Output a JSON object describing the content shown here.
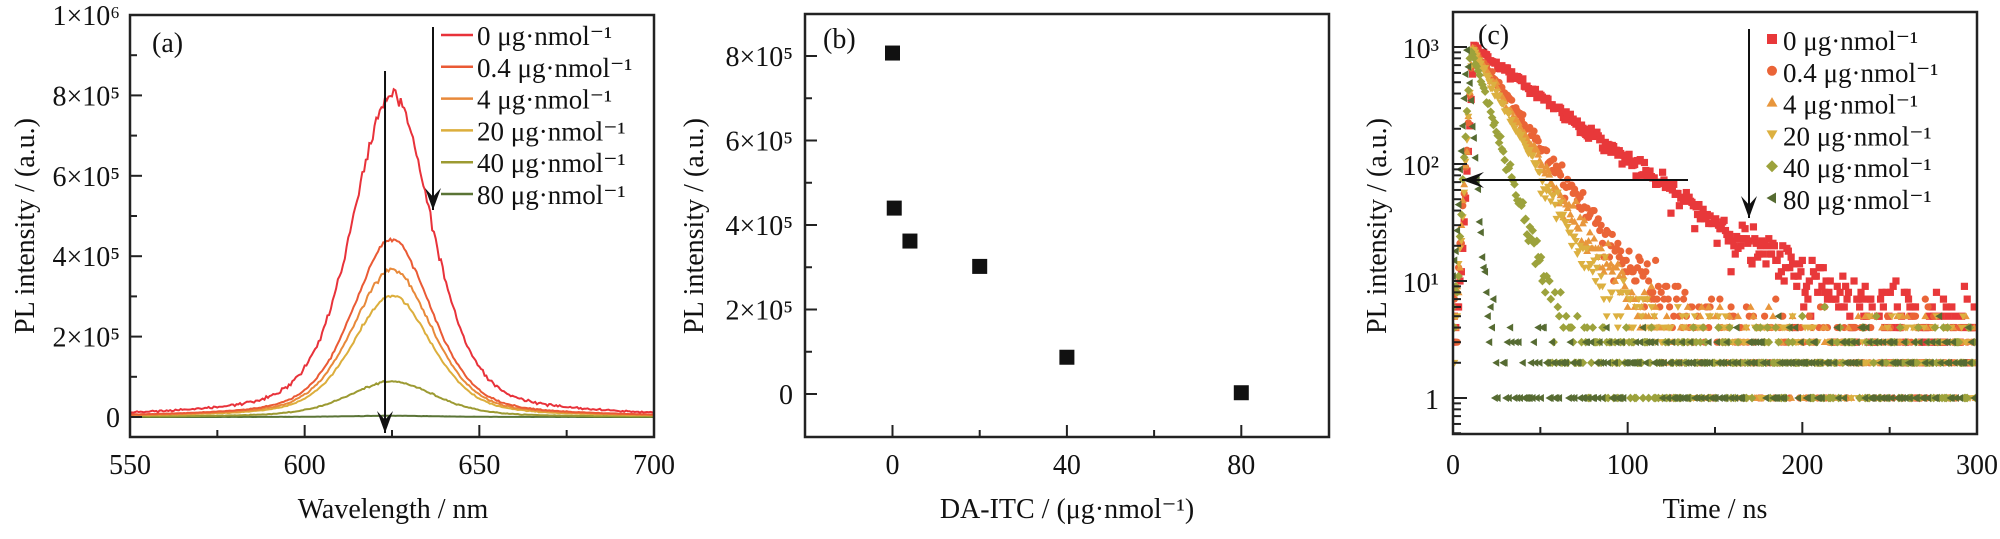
{
  "chart_data": [
    {
      "panel": "(a)",
      "type": "line",
      "xlabel": "Wavelength / nm",
      "ylabel": "PL intensity / (a.u.)",
      "xlim": [
        550,
        700
      ],
      "ylim": [
        -50000,
        1000000
      ],
      "xticks": [
        {
          "v": 550,
          "label": "550"
        },
        {
          "v": 600,
          "label": "600"
        },
        {
          "v": 650,
          "label": "650"
        },
        {
          "v": 700,
          "label": "700"
        }
      ],
      "yticks": [
        {
          "v": 0,
          "label": "0"
        },
        {
          "v": 200000,
          "label": "2×10⁵"
        },
        {
          "v": 400000,
          "label": "4×10⁵"
        },
        {
          "v": 600000,
          "label": "6×10⁵"
        },
        {
          "v": 800000,
          "label": "8×10⁵"
        },
        {
          "v": 1000000,
          "label": "1×10⁶"
        }
      ],
      "series": [
        {
          "name": "0 μg·nmol⁻¹",
          "color": "#e8323a",
          "peak_wavelength": 625,
          "peak_intensity": 805000,
          "fwhm": 27
        },
        {
          "name": "0.4 μg·nmol⁻¹",
          "color": "#ea5a35",
          "peak_wavelength": 625,
          "peak_intensity": 442000,
          "fwhm": 27
        },
        {
          "name": "4 μg·nmol⁻¹",
          "color": "#e8893a",
          "peak_wavelength": 625,
          "peak_intensity": 368000,
          "fwhm": 27
        },
        {
          "name": "20 μg·nmol⁻¹",
          "color": "#dcae3c",
          "peak_wavelength": 625,
          "peak_intensity": 302000,
          "fwhm": 27
        },
        {
          "name": "40 μg·nmol⁻¹",
          "color": "#9c9a32",
          "peak_wavelength": 625,
          "peak_intensity": 88000,
          "fwhm": 30
        },
        {
          "name": "80 μg·nmol⁻¹",
          "color": "#5a7436",
          "peak_wavelength": 625,
          "peak_intensity": 3000,
          "fwhm": 30
        }
      ]
    },
    {
      "panel": "(b)",
      "type": "scatter",
      "xlabel": "DA-ITC / (μg·nmol⁻¹)",
      "ylabel": "PL intensity / (a.u.)",
      "xlim": [
        -20,
        100
      ],
      "ylim": [
        -100000,
        900000
      ],
      "xticks": [
        {
          "v": 0,
          "label": "0"
        },
        {
          "v": 40,
          "label": "40"
        },
        {
          "v": 80,
          "label": "80"
        }
      ],
      "yticks": [
        {
          "v": 0,
          "label": "0"
        },
        {
          "v": 200000,
          "label": "2×10⁵"
        },
        {
          "v": 400000,
          "label": "4×10⁵"
        },
        {
          "v": 600000,
          "label": "6×10⁵"
        },
        {
          "v": 800000,
          "label": "8×10⁵"
        }
      ],
      "color": "#111111",
      "x": [
        0,
        0.4,
        4,
        20,
        40,
        80
      ],
      "y": [
        807000,
        440000,
        362000,
        302000,
        87000,
        3000
      ]
    },
    {
      "panel": "(c)",
      "type": "scatter",
      "yscale": "log",
      "xlabel": "Time / ns",
      "ylabel": "PL intensity / (a.u.)",
      "xlim": [
        0,
        300
      ],
      "ylim": [
        0.5,
        2000
      ],
      "xticks": [
        {
          "v": 0,
          "label": "0"
        },
        {
          "v": 100,
          "label": "100"
        },
        {
          "v": 200,
          "label": "200"
        },
        {
          "v": 300,
          "label": "300"
        }
      ],
      "yticks": [
        {
          "v": 1,
          "label": "1"
        },
        {
          "v": 10,
          "label": "10¹"
        },
        {
          "v": 100,
          "label": "10²"
        },
        {
          "v": 1000,
          "label": "10³"
        }
      ],
      "series": [
        {
          "name": "0 μg·nmol⁻¹",
          "color": "#e8383a",
          "marker": "square",
          "peak_counts": 1000,
          "peak_time_ns": 12,
          "decay_tau_ns": 39,
          "background": 3.2
        },
        {
          "name": "0.4 μg·nmol⁻¹",
          "color": "#ea6437",
          "marker": "circle",
          "peak_counts": 1000,
          "peak_time_ns": 11,
          "decay_tau_ns": 20,
          "background": 2.6
        },
        {
          "name": "4 μg·nmol⁻¹",
          "color": "#e8963c",
          "marker": "triangle-up",
          "peak_counts": 1000,
          "peak_time_ns": 11,
          "decay_tau_ns": 17,
          "background": 2.4
        },
        {
          "name": "20 μg·nmol⁻¹",
          "color": "#dcb040",
          "marker": "triangle-down",
          "peak_counts": 1000,
          "peak_time_ns": 11,
          "decay_tau_ns": 15,
          "background": 2.2
        },
        {
          "name": "40 μg·nmol⁻¹",
          "color": "#9ca23c",
          "marker": "diamond",
          "peak_counts": 1000,
          "peak_time_ns": 10,
          "decay_tau_ns": 9,
          "background": 2.0
        },
        {
          "name": "80 μg·nmol⁻¹",
          "color": "#566b32",
          "marker": "triangle-left",
          "peak_counts": 1000,
          "peak_time_ns": 8,
          "decay_tau_ns": 2.2,
          "background": 1.6
        }
      ]
    }
  ]
}
